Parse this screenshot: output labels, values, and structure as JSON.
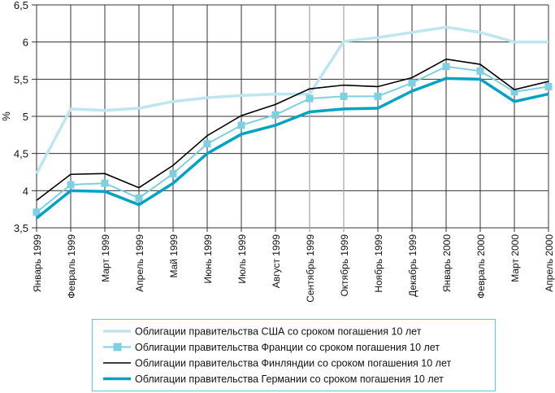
{
  "chart_data": {
    "type": "line",
    "title": "",
    "xlabel": "",
    "ylabel": "%",
    "ylim": [
      3.5,
      6.5
    ],
    "yticks": [
      "3,5",
      "4",
      "4,5",
      "5",
      "5,5",
      "6",
      "6,5"
    ],
    "ytick_values": [
      3.5,
      4,
      4.5,
      5,
      5.5,
      6,
      6.5
    ],
    "grid": true,
    "legend_position": "bottom",
    "categories": [
      "Январь 1999",
      "Февраль 1999",
      "Март 1999",
      "Апрель 1999",
      "Май 1999",
      "Июнь 1999",
      "Июль 1999",
      "Август 1999",
      "Сентябрь 1999",
      "Октябрь 1999",
      "Ноябрь 1999",
      "Декабрь 1999",
      "Январь 2000",
      "Февраль 2000",
      "Март 2000",
      "Апрель 2000"
    ],
    "series": [
      {
        "name": "Облигации правительства США со сроком погашения 10 лет",
        "color": "#bde6ee",
        "marker": "none",
        "values": [
          4.23,
          5.1,
          5.08,
          5.11,
          5.2,
          5.25,
          5.28,
          5.3,
          5.3,
          6.01,
          6.06,
          6.13,
          6.2,
          6.13,
          6.0,
          6.0
        ]
      },
      {
        "name": "Облигации правительства Франции со сроком погашения 10 лет",
        "color": "#7ecfe0",
        "marker": "square",
        "values": [
          3.71,
          4.08,
          4.1,
          3.9,
          4.23,
          4.63,
          4.88,
          5.02,
          5.24,
          5.27,
          5.27,
          5.45,
          5.67,
          5.61,
          5.33,
          5.4
        ]
      },
      {
        "name": "Облигации правительства Финляндии со сроком погашения 10 лет",
        "color": "#000000",
        "marker": "none",
        "values": [
          3.87,
          4.22,
          4.23,
          4.04,
          4.34,
          4.74,
          5.01,
          5.16,
          5.37,
          5.42,
          5.4,
          5.52,
          5.77,
          5.7,
          5.36,
          5.47
        ]
      },
      {
        "name": "Облигации правительства Германии со сроком погашения 10 лет",
        "color": "#00a3c4",
        "marker": "none",
        "values": [
          3.63,
          4.0,
          3.99,
          3.81,
          4.1,
          4.5,
          4.76,
          4.88,
          5.06,
          5.1,
          5.11,
          5.34,
          5.51,
          5.5,
          5.2,
          5.3
        ]
      }
    ]
  }
}
